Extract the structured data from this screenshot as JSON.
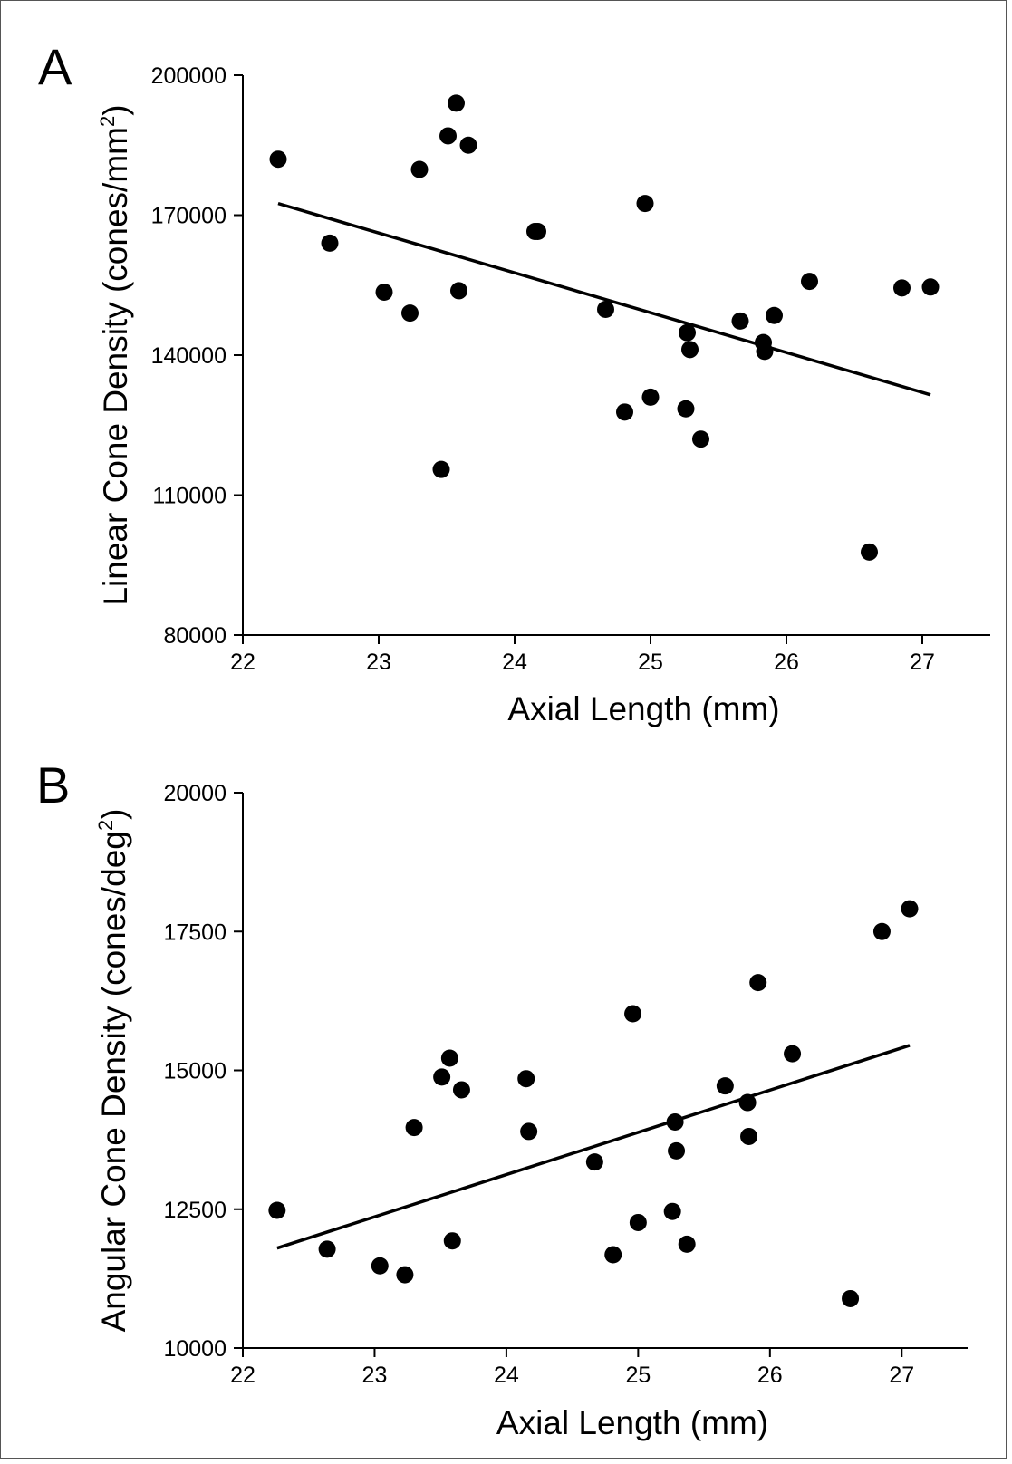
{
  "chart_data": [
    {
      "panel": "A",
      "type": "scatter",
      "xlabel": "Axial Length (mm)",
      "ylabel": "Linear Cone Density (cones/mm",
      "ylabel_sup": "2",
      "ylabel_end": ")",
      "xlim": [
        22,
        27.5
      ],
      "ylim": [
        80000,
        200000
      ],
      "xticks": [
        22,
        23,
        24,
        25,
        26,
        27
      ],
      "yticks": [
        80000,
        110000,
        140000,
        170000,
        200000
      ],
      "grid": false,
      "marker_color": "#000000",
      "points": [
        [
          22.26,
          182000
        ],
        [
          22.64,
          164000
        ],
        [
          23.04,
          153500
        ],
        [
          23.23,
          149000
        ],
        [
          23.3,
          179800
        ],
        [
          23.46,
          115500
        ],
        [
          23.51,
          187000
        ],
        [
          23.57,
          194000
        ],
        [
          23.59,
          153800
        ],
        [
          23.66,
          185000
        ],
        [
          24.15,
          166500
        ],
        [
          24.17,
          166500
        ],
        [
          24.67,
          149800
        ],
        [
          24.81,
          127800
        ],
        [
          24.96,
          172500
        ],
        [
          25.0,
          131000
        ],
        [
          25.26,
          128500
        ],
        [
          25.27,
          144800
        ],
        [
          25.29,
          141200
        ],
        [
          25.37,
          122000
        ],
        [
          25.66,
          147300
        ],
        [
          25.83,
          142700
        ],
        [
          25.84,
          140800
        ],
        [
          25.91,
          148500
        ],
        [
          26.17,
          155800
        ],
        [
          26.61,
          97800
        ],
        [
          26.85,
          154400
        ],
        [
          27.06,
          154600
        ]
      ],
      "trendline": {
        "x": [
          22.26,
          27.06
        ],
        "y": [
          172500,
          131500
        ]
      }
    },
    {
      "panel": "B",
      "type": "scatter",
      "xlabel": "Axial Length (mm)",
      "ylabel": "Angular Cone Density (cones/deg",
      "ylabel_sup": "2",
      "ylabel_end": ")",
      "xlim": [
        22,
        27.5
      ],
      "ylim": [
        10000,
        20000
      ],
      "xticks": [
        22,
        23,
        24,
        25,
        26,
        27
      ],
      "yticks": [
        10000,
        12500,
        15000,
        17500,
        20000
      ],
      "grid": false,
      "marker_color": "#000000",
      "points": [
        [
          22.26,
          12480
        ],
        [
          22.64,
          11780
        ],
        [
          23.04,
          11480
        ],
        [
          23.23,
          11320
        ],
        [
          23.3,
          13970
        ],
        [
          23.51,
          14880
        ],
        [
          23.57,
          15220
        ],
        [
          23.59,
          11930
        ],
        [
          23.66,
          14650
        ],
        [
          24.15,
          14850
        ],
        [
          24.17,
          13900
        ],
        [
          24.67,
          13350
        ],
        [
          24.81,
          11680
        ],
        [
          24.96,
          16020
        ],
        [
          25.0,
          12260
        ],
        [
          25.26,
          12460
        ],
        [
          25.28,
          14070
        ],
        [
          25.29,
          13550
        ],
        [
          25.37,
          11870
        ],
        [
          25.66,
          14720
        ],
        [
          25.83,
          14420
        ],
        [
          25.84,
          13810
        ],
        [
          25.91,
          16580
        ],
        [
          26.17,
          15300
        ],
        [
          26.61,
          10890
        ],
        [
          26.85,
          17500
        ],
        [
          27.06,
          17910
        ]
      ],
      "trendline": {
        "x": [
          22.26,
          27.06
        ],
        "y": [
          11800,
          15450
        ]
      }
    }
  ]
}
